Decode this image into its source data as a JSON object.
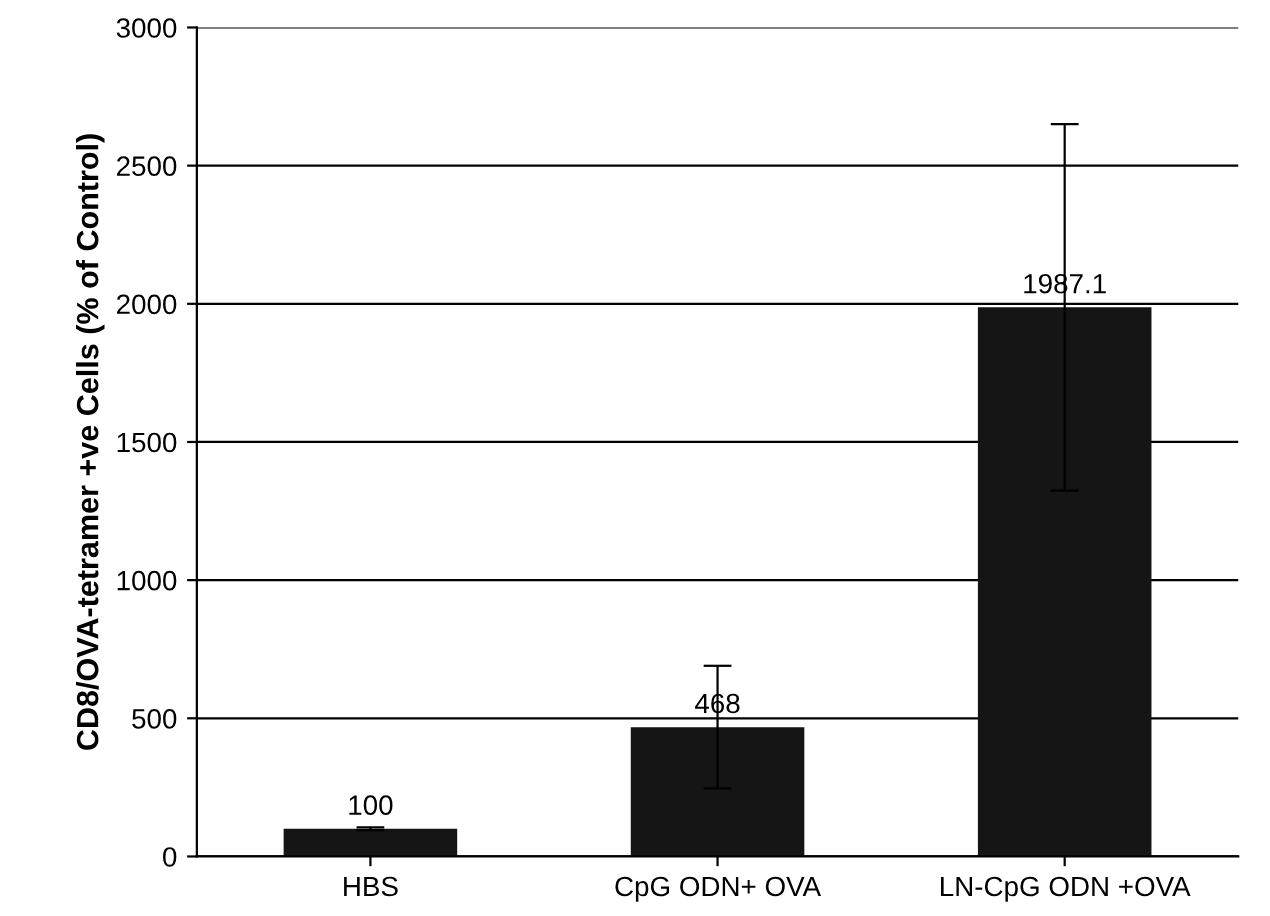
{
  "chart_data": {
    "type": "bar",
    "ylabel": "CD8/OVA-tetramer +ve Cells (% of Control)",
    "categories": [
      "HBS",
      "CpG ODN+ OVA",
      "LN-CpG ODN +OVA"
    ],
    "values": [
      100,
      468,
      1987.1
    ],
    "errors": [
      5,
      222,
      663
    ],
    "color": "#151515",
    "ylim": [
      0,
      3000
    ],
    "yticks": [
      0,
      500,
      1000,
      1500,
      2000,
      2500,
      3000
    ],
    "grid": "y",
    "data_labels": true
  }
}
